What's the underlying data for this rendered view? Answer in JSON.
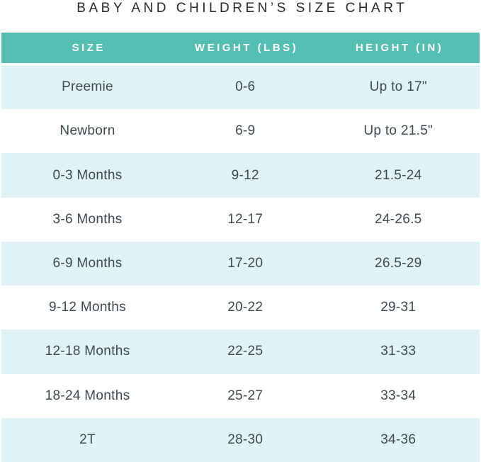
{
  "title": "BABY AND CHILDREN’S SIZE CHART",
  "colors": {
    "header_bg": "#54BEB3",
    "header_text": "#FFFFFF",
    "row_alt_bg": "#E0F3F6",
    "row_bg": "#FFFFFF",
    "body_text": "#3E4A4E",
    "title_text": "#272B2B"
  },
  "chart_data": {
    "type": "table",
    "title": "BABY AND CHILDREN’S SIZE CHART",
    "columns": [
      "SIZE",
      "WEIGHT (LBS)",
      "HEIGHT (IN)"
    ],
    "rows": [
      [
        "Preemie",
        "0-6",
        "Up to 17\""
      ],
      [
        "Newborn",
        "6-9",
        "Up to 21.5\""
      ],
      [
        "0-3 Months",
        "9-12",
        "21.5-24"
      ],
      [
        "3-6 Months",
        "12-17",
        "24-26.5"
      ],
      [
        "6-9 Months",
        "17-20",
        "26.5-29"
      ],
      [
        "9-12 Months",
        "20-22",
        "29-31"
      ],
      [
        "12-18 Months",
        "22-25",
        "31-33"
      ],
      [
        "18-24 Months",
        "25-27",
        "33-34"
      ],
      [
        "2T",
        "28-30",
        "34-36"
      ]
    ]
  }
}
